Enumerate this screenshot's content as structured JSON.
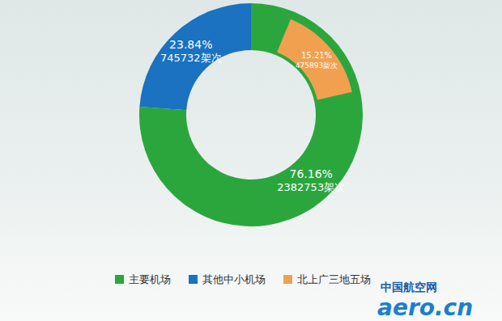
{
  "chart_data": {
    "type": "donut",
    "categories": [
      "主要机场",
      "其他中小机场",
      "北上广三地五场"
    ],
    "values": [
      76.16,
      23.84,
      15.21
    ],
    "value_labels": [
      "76.16%",
      "23.84%",
      "15.21%"
    ],
    "counts": [
      2382753,
      745732,
      475893
    ],
    "count_labels": [
      "2382753架次",
      "745732架次",
      "475893架次"
    ],
    "parent": [
      null,
      null,
      0
    ],
    "colors": [
      "#2ba63d",
      "#1a72c1",
      "#f0a04f"
    ],
    "data_labels": true,
    "legend": "bottom",
    "annotations": [
      "中国航空网",
      "aero.cn"
    ]
  }
}
